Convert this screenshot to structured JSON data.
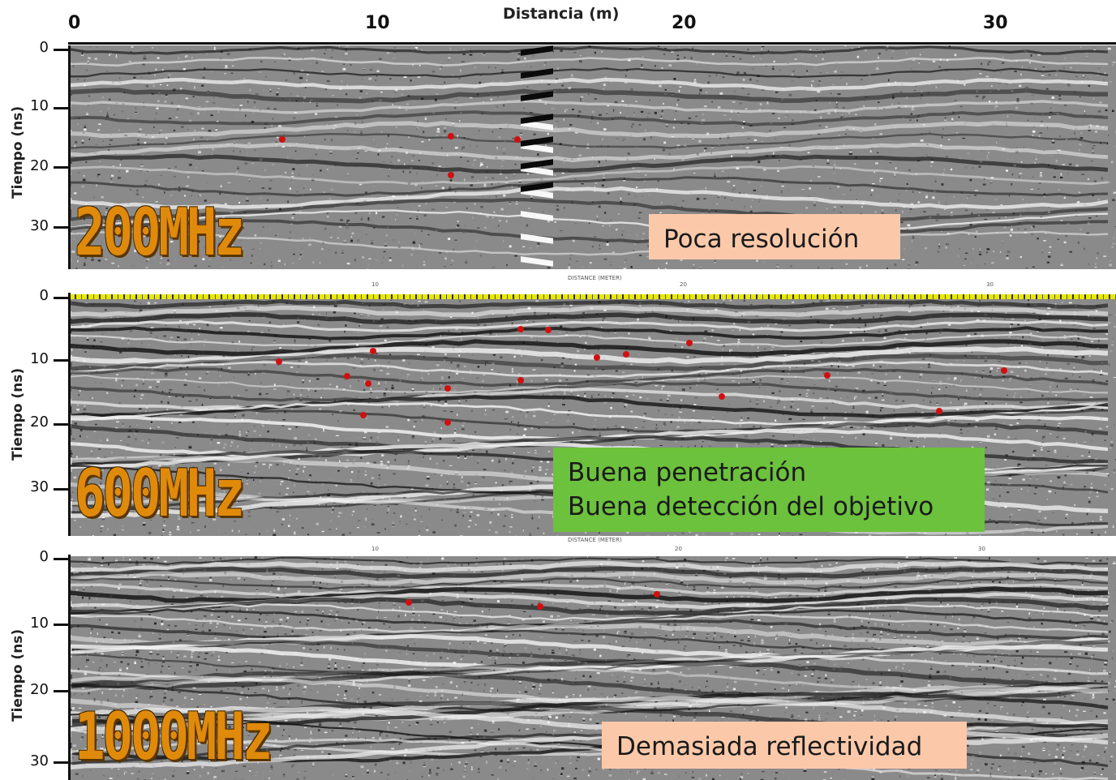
{
  "top_axis": {
    "title": "Distancia (m)",
    "ticks": [
      "0",
      "10",
      "20",
      "30"
    ]
  },
  "panels": [
    {
      "frequency_label": "200MHz",
      "y_axis_title": "Tiempo (ns)",
      "y_ticks": [
        "0",
        "10",
        "20",
        "30"
      ],
      "note_lines": [
        "Poca resolución"
      ],
      "note_color": "#fbc9a9",
      "sub_axis": null
    },
    {
      "frequency_label": "600MHz",
      "y_axis_title": "Tiempo (ns)",
      "y_ticks": [
        "0",
        "10",
        "20",
        "30"
      ],
      "note_lines": [
        "Buena penetración",
        "Buena detección del objetivo"
      ],
      "note_color": "#6cc13d",
      "sub_axis": {
        "title": "DISTANCE (METER)",
        "ticks": [
          "10",
          "20",
          "30"
        ]
      }
    },
    {
      "frequency_label": "1000MHz",
      "y_axis_title": "Tiempo (ns)",
      "y_ticks": [
        "0",
        "10",
        "20",
        "30"
      ],
      "note_lines": [
        "Demasiada reflectividad"
      ],
      "note_color": "#fbc9a9",
      "sub_axis": {
        "title": "DISTANCE (METER)",
        "ticks": [
          "10",
          "20",
          "30"
        ]
      }
    }
  ],
  "colors": {
    "frequency_label": "#e08a0b",
    "target_marker": "#d01010"
  }
}
